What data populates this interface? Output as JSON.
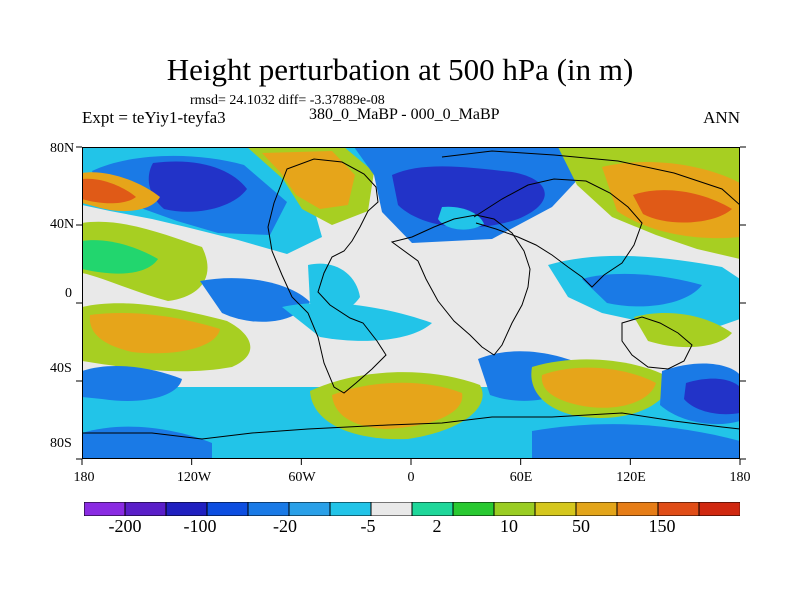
{
  "figure": {
    "title": "Height perturbation at 500 hPa (in m)",
    "stats_text": "rmsd= 24.1032 diff= -3.37889e-08",
    "experiment_text": "Expt = teYiy1-teyfa3",
    "case_text": "380_0_MaBP - 000_0_MaBP",
    "season_text": "ANN"
  },
  "map": {
    "lat_labels": [
      "80N",
      "40N",
      "0",
      "40S",
      "80S"
    ],
    "lon_labels": [
      "180",
      "120W",
      "60W",
      "0",
      "60E",
      "120E",
      "180"
    ]
  },
  "colorbar": {
    "colors": [
      "#8a2be2",
      "#5a1ec8",
      "#2020c0",
      "#0d4ee0",
      "#1a7ae6",
      "#2aa0e8",
      "#22c4e8",
      "#e9e9e9",
      "#1fd79a",
      "#29c931",
      "#9acd23",
      "#d5c71d",
      "#e3a51a",
      "#e67d17",
      "#e04d17",
      "#d02810"
    ],
    "labels": [
      "-200",
      "-100",
      "-20",
      "-5",
      "2",
      "10",
      "50",
      "150"
    ]
  },
  "palette": {
    "background": "#e9e9e9",
    "deep_blue": "#2233c8",
    "blue": "#1a7ae6",
    "light_blue": "#22c4e8",
    "green": "#22d66e",
    "yellow_green": "#a7cf22",
    "orange": "#e6a51a",
    "red_orange": "#e05a17",
    "outline": "#000000"
  }
}
